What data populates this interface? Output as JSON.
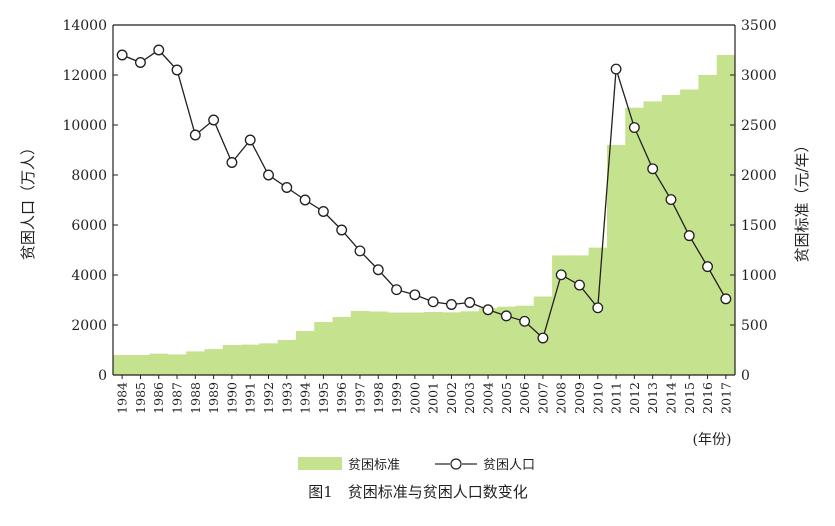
{
  "colors": {
    "bar": "#c5e38f",
    "line": "#231f20",
    "marker_fill": "#ffffff",
    "axis": "#231f20"
  },
  "chart_data": {
    "type": "bar",
    "title": "图1　贫困标准与贫困人口数变化",
    "xlabel_unit": "(年份)",
    "ylabel_left": "贫困人口（万人）",
    "ylabel_right": "贫困标准（元/年）",
    "categories": [
      "1984",
      "1985",
      "1986",
      "1987",
      "1988",
      "1989",
      "1990",
      "1991",
      "1992",
      "1993",
      "1994",
      "1995",
      "1996",
      "1997",
      "1998",
      "1999",
      "2000",
      "2001",
      "2002",
      "2003",
      "2004",
      "2005",
      "2006",
      "2007",
      "2008",
      "2009",
      "2010",
      "2011",
      "2012",
      "2013",
      "2014",
      "2015",
      "2016",
      "2017"
    ],
    "y_left_ticks": [
      "0",
      "2000",
      "4000",
      "6000",
      "8000",
      "10000",
      "12000",
      "14000"
    ],
    "y_right_ticks": [
      "0",
      "500",
      "1000",
      "1500",
      "2000",
      "2500",
      "3000",
      "3500"
    ],
    "ylim_left": [
      0,
      14000
    ],
    "ylim_right": [
      0,
      3500
    ],
    "legend_position": "bottom",
    "series": [
      {
        "name": "贫困标准",
        "kind": "bar",
        "axis": "right",
        "values": [
          200,
          200,
          213,
          206,
          236,
          259,
          300,
          304,
          317,
          350,
          440,
          530,
          580,
          640,
          635,
          625,
          625,
          630,
          627,
          637,
          668,
          683,
          693,
          785,
          1196,
          1196,
          1274,
          2300,
          2673,
          2736,
          2800,
          2855,
          3000,
          3200
        ]
      },
      {
        "name": "贫困人口",
        "kind": "line",
        "axis": "left",
        "values": [
          12800,
          12500,
          13000,
          12200,
          9600,
          10200,
          8500,
          9400,
          8000,
          7500,
          7000,
          6540,
          5800,
          4962,
          4210,
          3412,
          3209,
          2927,
          2820,
          2900,
          2610,
          2365,
          2148,
          1479,
          4007,
          3597,
          2688,
          12238,
          9899,
          8249,
          7017,
          5575,
          4335,
          3046
        ]
      }
    ]
  }
}
